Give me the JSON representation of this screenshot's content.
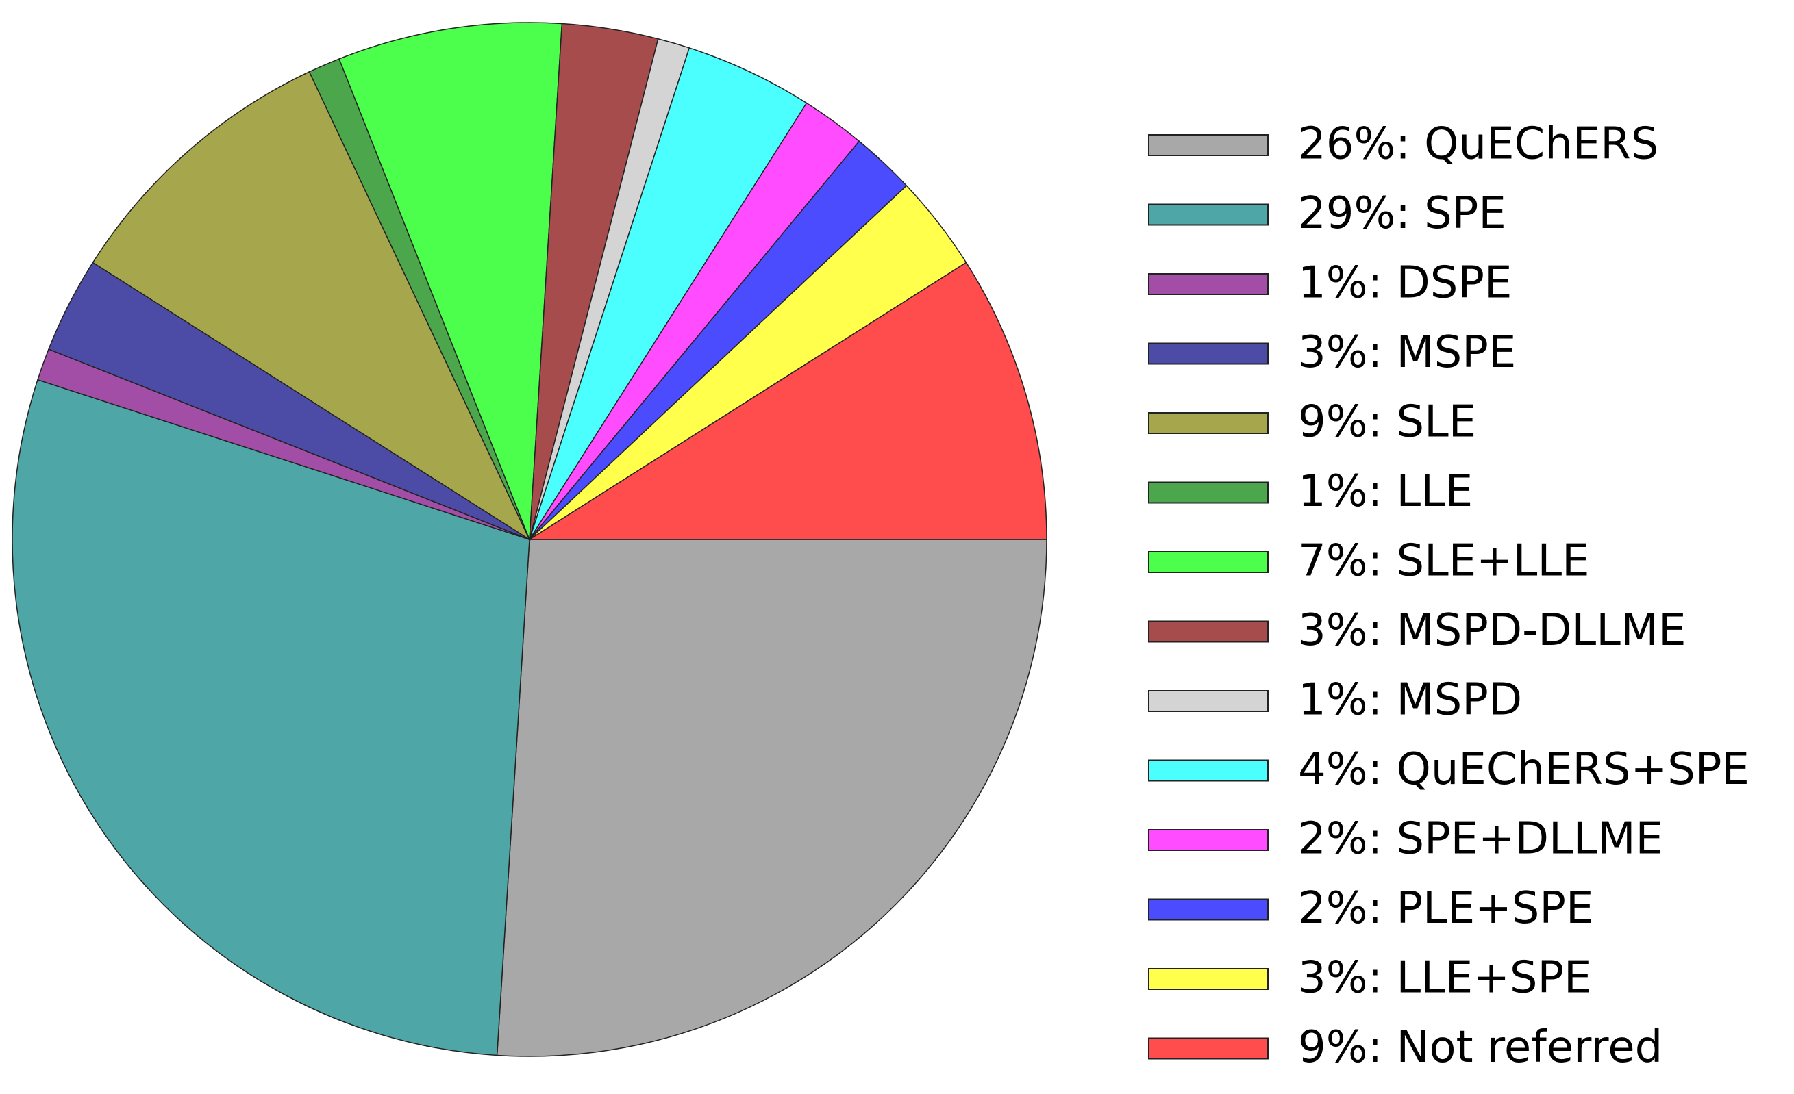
{
  "chart_data": {
    "type": "pie",
    "categories": [
      "26%: QuEChERS",
      "29%: SPE",
      "1%: DSPE",
      "3%: MSPE",
      "9%: SLE",
      "1%: LLE",
      "7%: SLE+LLE",
      "3%: MSPD-DLLME",
      "1%: MSPD",
      "4%: QuEChERS+SPE",
      "2%: SPE+DLLME",
      "2%: PLE+SPE",
      "3%: LLE+SPE",
      "9%: Not referred"
    ],
    "values": [
      26,
      29,
      1,
      3,
      9,
      1,
      7,
      3,
      1,
      4,
      2,
      2,
      3,
      9
    ],
    "colors": [
      "#a8a8a8",
      "#4ea6a6",
      "#a24ea6",
      "#4c4ca6",
      "#a6a64c",
      "#4ca64c",
      "#4cff4c",
      "#a64c4c",
      "#d4d4d4",
      "#4cffff",
      "#ff4cff",
      "#4c4cff",
      "#ffff4c",
      "#ff4c4c"
    ],
    "legend": "right"
  }
}
